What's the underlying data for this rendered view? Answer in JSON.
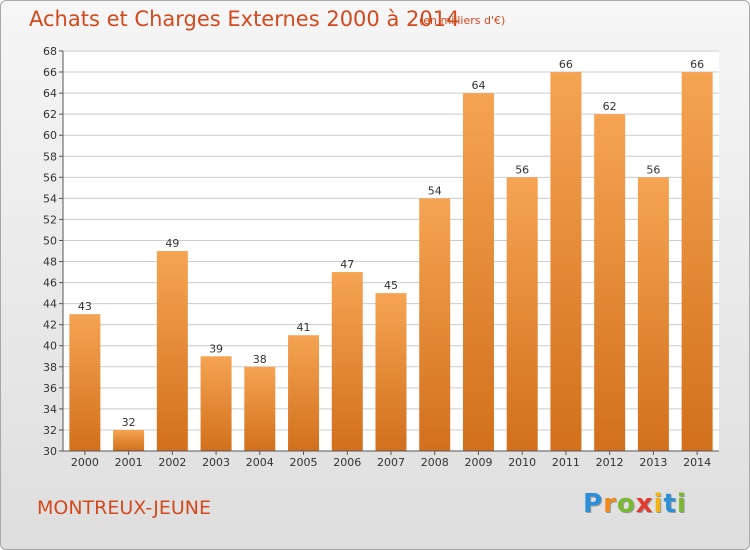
{
  "header": {
    "title": "Achats et Charges Externes 2000 à 2014",
    "subtitle": "(en milliers d'€)"
  },
  "footer": {
    "place": "MONTREUX-JEUNE",
    "logo_letters": [
      {
        "char": "P",
        "color": "#2a8fd6"
      },
      {
        "char": "r",
        "color": "#f08a1c"
      },
      {
        "char": "o",
        "color": "#7ab830"
      },
      {
        "char": "x",
        "color": "#e23a2e"
      },
      {
        "char": "i",
        "color": "#f0b418"
      },
      {
        "char": "t",
        "color": "#2a8fd6"
      },
      {
        "char": "i",
        "color": "#7ab830"
      }
    ]
  },
  "colors": {
    "bar_top": "#f5a453",
    "bar_bottom": "#d2701c",
    "accent": "#d24a1e",
    "grid": "#cccccc",
    "plot_bg": "#ffffff"
  },
  "chart_data": {
    "type": "bar",
    "title": "Achats et Charges Externes 2000 à 2014",
    "subtitle": "(en milliers d'€)",
    "categories": [
      "2000",
      "2001",
      "2002",
      "2003",
      "2004",
      "2005",
      "2006",
      "2007",
      "2008",
      "2009",
      "2010",
      "2011",
      "2012",
      "2013",
      "2014"
    ],
    "values": [
      43,
      32,
      49,
      39,
      38,
      41,
      47,
      45,
      54,
      64,
      56,
      66,
      62,
      56,
      66
    ],
    "ylim": [
      30,
      68
    ],
    "ytick_step": 2,
    "grid": true,
    "data_labels": true
  }
}
